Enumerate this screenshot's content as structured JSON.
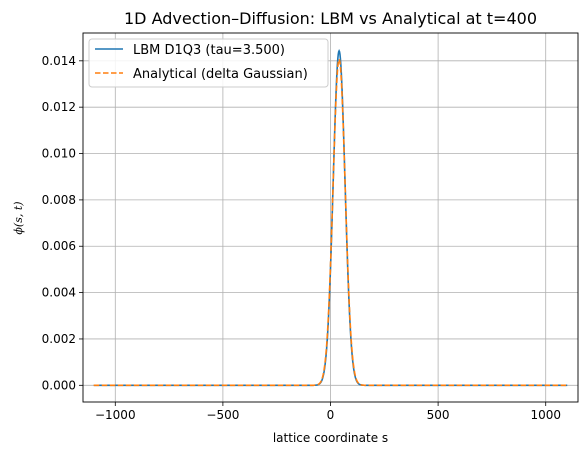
{
  "chart_data": {
    "type": "line",
    "title": "1D Advection–Diffusion: LBM vs Analytical at t=400",
    "xlabel": "lattice coordinate s",
    "ylabel": "ϕ(s, t)",
    "xlim": [
      -1150,
      1150
    ],
    "ylim": [
      -0.00072,
      0.0152
    ],
    "xticks": [
      -1000,
      -500,
      0,
      500,
      1000
    ],
    "xtick_labels": [
      "−1000",
      "−500",
      "0",
      "500",
      "1000"
    ],
    "yticks": [
      0,
      0.002,
      0.004,
      0.006,
      0.008,
      0.01,
      0.012,
      0.014
    ],
    "ytick_labels": [
      "0.000",
      "0.002",
      "0.004",
      "0.006",
      "0.008",
      "0.010",
      "0.012",
      "0.014"
    ],
    "grid": true,
    "legend_position": "top-left",
    "series": [
      {
        "name": "LBM D1Q3 (tau=3.500)",
        "color": "#1f77b4",
        "style": "solid",
        "model": "gaussian",
        "x_range": [
          -1100,
          1100
        ],
        "peak_value": 0.01443,
        "center": 40,
        "sigma": 27.6
      },
      {
        "name": "Analytical (delta Gaussian)",
        "color": "#ff7f0e",
        "style": "dashed",
        "model": "gaussian",
        "x_range": [
          -1100,
          1100
        ],
        "peak_value": 0.01407,
        "center": 40,
        "sigma": 28.3
      }
    ]
  }
}
